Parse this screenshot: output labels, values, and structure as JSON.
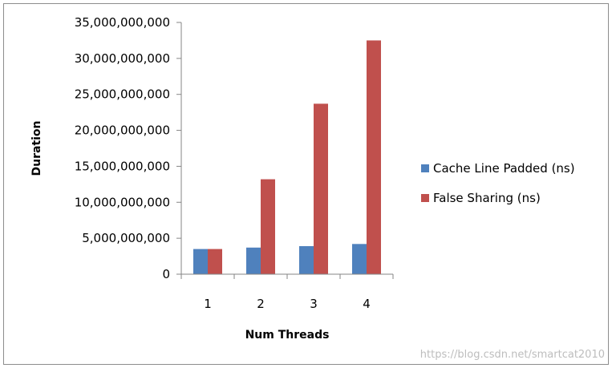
{
  "chart_data": {
    "type": "bar",
    "categories": [
      "1",
      "2",
      "3",
      "4"
    ],
    "series": [
      {
        "name": "Cache Line Padded (ns)",
        "color": "#4f81bd",
        "values": [
          3500000000,
          3700000000,
          3900000000,
          4200000000
        ]
      },
      {
        "name": "False Sharing (ns)",
        "color": "#c0504d",
        "values": [
          3500000000,
          13200000000,
          23700000000,
          32500000000
        ]
      }
    ],
    "xlabel": "Num Threads",
    "ylabel": "Duration",
    "ylim": [
      0,
      35000000000
    ],
    "yticks": [
      "0",
      "5,000,000,000",
      "10,000,000,000",
      "15,000,000,000",
      "20,000,000,000",
      "25,000,000,000",
      "30,000,000,000",
      "35,000,000,000"
    ],
    "grid": false,
    "legend_position": "right"
  },
  "watermark": "https://blog.csdn.net/smartcat2010"
}
